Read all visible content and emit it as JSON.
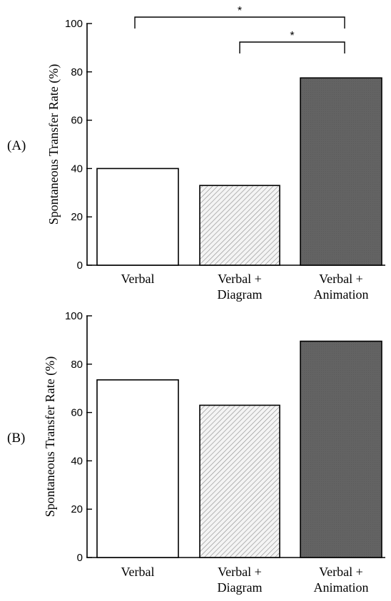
{
  "chart_data": [
    {
      "type": "bar",
      "panel_label": "(A)",
      "categories": [
        [
          "Verbal"
        ],
        [
          "Verbal +",
          "Diagram"
        ],
        [
          "Verbal +",
          "Animation"
        ]
      ],
      "values": [
        40,
        33,
        77.5
      ],
      "ylabel": "Spontaneous Transfer Rate (%)",
      "ylim": [
        0,
        100
      ],
      "yticks": [
        0,
        20,
        40,
        60,
        80,
        100
      ],
      "bar_styles": [
        "white",
        "diagonal-hatch",
        "dark-gray"
      ],
      "significance": [
        {
          "from": 0,
          "to": 2,
          "label": "*"
        },
        {
          "from": 1,
          "to": 2,
          "label": "*"
        }
      ]
    },
    {
      "type": "bar",
      "panel_label": "(B)",
      "categories": [
        [
          "Verbal"
        ],
        [
          "Verbal +",
          "Diagram"
        ],
        [
          "Verbal +",
          "Animation"
        ]
      ],
      "values": [
        73.5,
        63,
        89.5
      ],
      "ylabel": "Spontaneous Transfer Rate (%)",
      "ylim": [
        0,
        100
      ],
      "yticks": [
        0,
        20,
        40,
        60,
        80,
        100
      ],
      "bar_styles": [
        "white",
        "diagonal-hatch",
        "dark-gray"
      ],
      "significance": []
    }
  ],
  "colors": {
    "white_bar": "#ffffff",
    "hatch_bg": "#f4f4f4",
    "hatch_line": "#8c8c8c",
    "dark_bar": "#636363",
    "axis": "#000000"
  }
}
